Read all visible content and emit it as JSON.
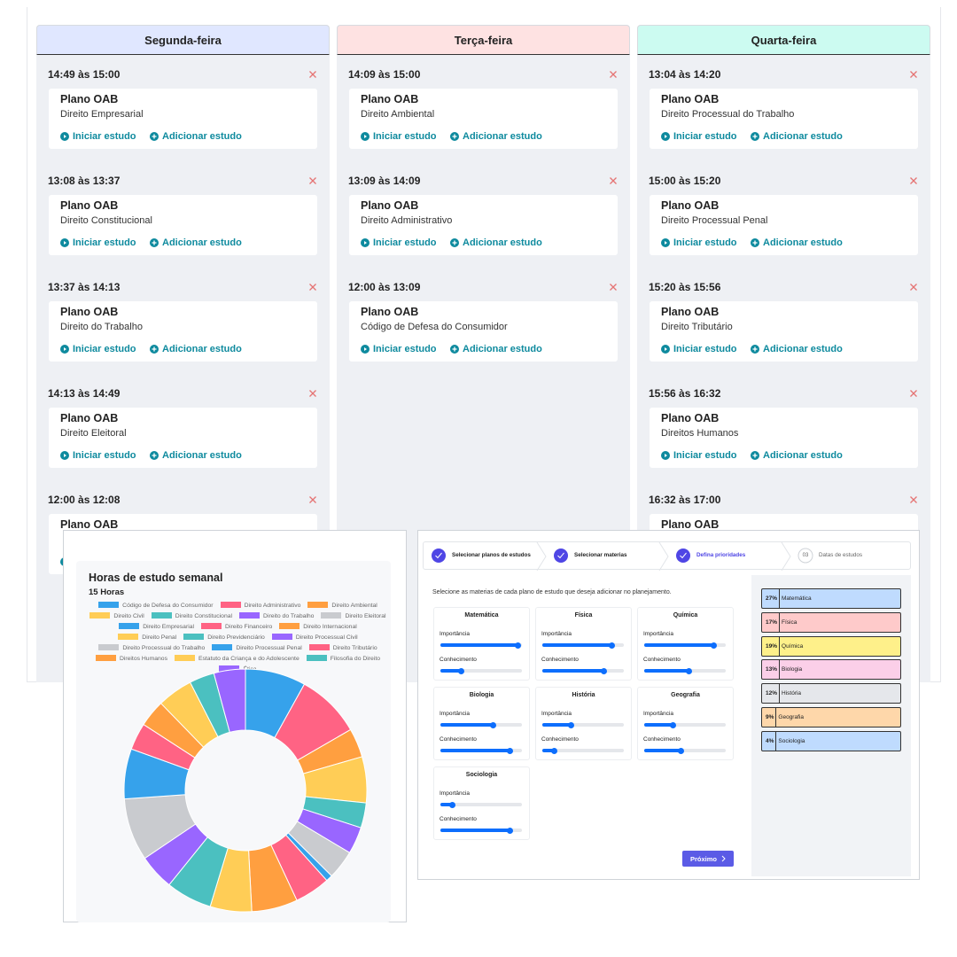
{
  "schedule": {
    "columns": [
      {
        "day": "Segunda-feira",
        "color": "#e0e7ff",
        "entries": [
          {
            "time": "14:49 às 15:00",
            "plan": "Plano OAB",
            "subject": "Direito Empresarial"
          },
          {
            "time": "13:08 às 13:37",
            "plan": "Plano OAB",
            "subject": "Direito Constitucional"
          },
          {
            "time": "13:37 às 14:13",
            "plan": "Plano OAB",
            "subject": "Direito do Trabalho"
          },
          {
            "time": "14:13 às 14:49",
            "plan": "Plano OAB",
            "subject": "Direito Eleitoral"
          },
          {
            "time": "12:00 às 12:08",
            "plan": "Plano OAB"
          }
        ]
      },
      {
        "day": "Terça-feira",
        "color": "#fee2e2",
        "entries": [
          {
            "time": "14:09 às 15:00",
            "plan": "Plano OAB",
            "subject": "Direito Ambiental"
          },
          {
            "time": "13:09 às 14:09",
            "plan": "Plano OAB",
            "subject": "Direito Administrativo"
          },
          {
            "time": "12:00 às 13:09",
            "plan": "Plano OAB",
            "subject": "Código de Defesa do Consumidor"
          }
        ]
      },
      {
        "day": "Quarta-feira",
        "color": "#ccfbf1",
        "entries": [
          {
            "time": "13:04 às 14:20",
            "plan": "Plano OAB",
            "subject": "Direito Processual do Trabalho"
          },
          {
            "time": "15:00 às 15:20",
            "plan": "Plano OAB",
            "subject": "Direito Processual Penal"
          },
          {
            "time": "15:20 às 15:56",
            "plan": "Plano OAB",
            "subject": "Direito Tributário"
          },
          {
            "time": "15:56 às 16:32",
            "plan": "Plano OAB",
            "subject": "Direitos Humanos"
          },
          {
            "time": "16:32 às 17:00",
            "plan": "Plano OAB"
          }
        ]
      }
    ],
    "actions": {
      "start": "Iniciar estudo",
      "add": "Adicionar estudo"
    }
  },
  "chart_data": {
    "type": "doughnut",
    "title": "Horas de estudo semanal",
    "subtitle": "15 Horas",
    "categories": [
      "Código de Defesa do Consumidor",
      "Direito Administrativo",
      "Direito Ambiental",
      "Direito Civil",
      "Direito Constitucional",
      "Direito do Trabalho",
      "Direito Eleitoral",
      "Direito Empresarial",
      "Direito Financeiro",
      "Direito Internacional",
      "Direito Penal",
      "Direito Previdenciário",
      "Direito Processual Civil",
      "Direito Processual do Trabalho",
      "Direito Processual Penal",
      "Direito Tributário",
      "Direitos Humanos",
      "Estatuto da Criança e do Adolescente",
      "Filosofia do Direito",
      "Ética"
    ],
    "values": [
      1.21,
      1.29,
      0.58,
      0.92,
      0.5,
      0.54,
      0.58,
      0.13,
      0.71,
      0.92,
      0.83,
      0.92,
      0.71,
      1.25,
      1.0,
      0.54,
      0.54,
      0.71,
      0.5,
      0.63
    ],
    "colors": [
      "#36a2eb",
      "#ff6384",
      "#ff9f40",
      "#ffcd56",
      "#4bc0c0",
      "#9966ff",
      "#c9cbcf",
      "#36a2eb",
      "#ff6384",
      "#ff9f40",
      "#ffcd56",
      "#4bc0c0",
      "#9966ff",
      "#c9cbcf",
      "#36a2eb",
      "#ff6384",
      "#ff9f40",
      "#ffcd56",
      "#4bc0c0",
      "#9966ff"
    ]
  },
  "wizard": {
    "steps": [
      {
        "label": "Selecionar planos de estudos"
      },
      {
        "label": "Selecionar materias"
      },
      {
        "label": "Defina prioridades"
      },
      {
        "number": "03",
        "label": "Datas de estudos"
      }
    ],
    "instruction": "Selecione as materias de cada plano de estudo que deseja adicionar no planejamento.",
    "labels": {
      "importance": "Importância",
      "knowledge": "Conhecimento"
    },
    "subjects": [
      {
        "name": "Matemática",
        "importance": 0.95,
        "knowledge": 0.25
      },
      {
        "name": "Física",
        "importance": 0.85,
        "knowledge": 0.75
      },
      {
        "name": "Química",
        "importance": 0.85,
        "knowledge": 0.55
      },
      {
        "name": "Biologia",
        "importance": 0.65,
        "knowledge": 0.85
      },
      {
        "name": "História",
        "importance": 0.35,
        "knowledge": 0.15
      },
      {
        "name": "Geografia",
        "importance": 0.35,
        "knowledge": 0.45
      },
      {
        "name": "Sociologia",
        "importance": 0.15,
        "knowledge": 0.85
      }
    ],
    "priorities": [
      {
        "pct": "27%",
        "name": "Matemática",
        "color": "#bfdbfe"
      },
      {
        "pct": "17%",
        "name": "Física",
        "color": "#fecaca"
      },
      {
        "pct": "19%",
        "name": "Química",
        "color": "#fef08a"
      },
      {
        "pct": "13%",
        "name": "Biologia",
        "color": "#fbcfe8"
      },
      {
        "pct": "12%",
        "name": "História",
        "color": "#e5e7eb"
      },
      {
        "pct": "9%",
        "name": "Geografia",
        "color": "#fed7aa"
      },
      {
        "pct": "4%",
        "name": "Sociologia",
        "color": "#bfdbfe"
      }
    ],
    "next": "Próximo"
  }
}
